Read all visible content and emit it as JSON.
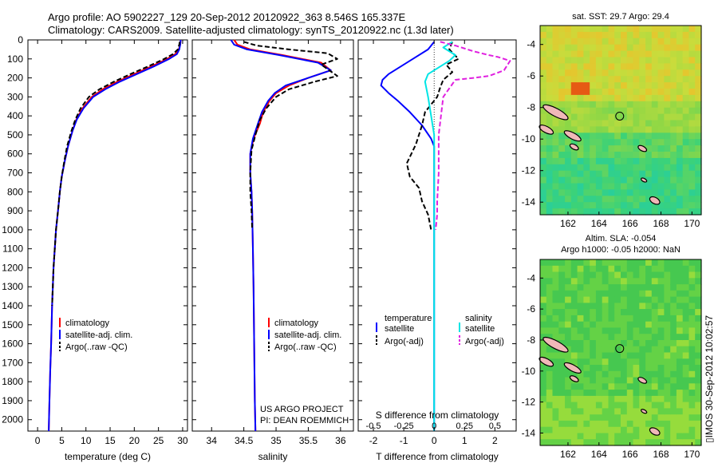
{
  "header": {
    "line1": "Argo profile: AO 5902227_129 20-Sep-2012 20120922_363 8.546S 165.337E",
    "line2": "Climatology: CARS2009. Satellite-adjusted climatology: synTS_20120922.nc (1.3d later)"
  },
  "colors": {
    "climatology": "#ff0000",
    "satellite": "#0000ff",
    "argo": "#000000",
    "satellite_salinity": "#00e5e5",
    "argo_salinity": "#e020e0"
  },
  "chart_data": [
    {
      "type": "line",
      "xlabel": "temperature (deg C)",
      "xlim": [
        -2,
        31
      ],
      "xticks": [
        0,
        5,
        10,
        15,
        20,
        25,
        30
      ],
      "ylim": [
        2060,
        0
      ],
      "yticks": [
        0,
        100,
        200,
        300,
        400,
        500,
        600,
        700,
        800,
        900,
        1000,
        1100,
        1200,
        1300,
        1400,
        1500,
        1600,
        1700,
        1800,
        1900,
        2000
      ],
      "legend": [
        "climatology",
        "satellite-adj. clim.",
        "Argo(..raw -QC)"
      ],
      "series": [
        {
          "name": "climatology",
          "color": "#ff0000",
          "dash": "",
          "x": [
            29.6,
            29.5,
            29.2,
            28.5,
            26.8,
            23.5,
            20,
            16.5,
            13.5,
            11.2,
            9.3,
            8,
            7.2,
            6.3,
            5.6,
            5,
            4.6,
            4.3,
            3.8,
            3.3,
            3,
            2.8,
            2.6,
            2.5,
            2.4,
            2.3
          ],
          "y": [
            0,
            25,
            50,
            75,
            100,
            140,
            180,
            220,
            260,
            300,
            360,
            420,
            480,
            560,
            640,
            720,
            800,
            880,
            1000,
            1200,
            1400,
            1600,
            1750,
            1850,
            1950,
            2060
          ]
        },
        {
          "name": "satellite-adj. clim.",
          "color": "#0000ff",
          "dash": "",
          "x": [
            29.6,
            29.5,
            29.3,
            28.8,
            27.2,
            24,
            20.5,
            17,
            14,
            11.5,
            9.5,
            8.1,
            7.2,
            6.3,
            5.6,
            5,
            4.6,
            4.3,
            3.8,
            3.3,
            3,
            2.8,
            2.6,
            2.5,
            2.4,
            2.3
          ],
          "y": [
            0,
            25,
            50,
            75,
            100,
            140,
            180,
            220,
            260,
            300,
            360,
            420,
            480,
            560,
            640,
            720,
            800,
            880,
            1000,
            1200,
            1400,
            1600,
            1750,
            1850,
            1950,
            2060
          ]
        },
        {
          "name": "Argo(..raw -QC)",
          "color": "#000000",
          "dash": "6,3",
          "x": [
            29.4,
            29.3,
            29,
            28,
            26.2,
            22.8,
            19.2,
            15.8,
            12.8,
            10.6,
            8.9,
            7.8,
            7,
            6.1,
            5.5,
            5,
            4.6,
            4.3,
            3.8,
            3.3,
            3
          ],
          "y": [
            10,
            25,
            50,
            75,
            100,
            140,
            180,
            220,
            260,
            300,
            360,
            420,
            480,
            560,
            640,
            720,
            800,
            880,
            1000,
            1200,
            1400
          ]
        }
      ]
    },
    {
      "type": "line",
      "xlabel": "salinity",
      "xlim": [
        33.7,
        36.2
      ],
      "xticks": [
        34,
        34.5,
        35,
        35.5,
        36
      ],
      "ylim": [
        2060,
        0
      ],
      "legend": [
        "climatology",
        "satellite-adj. clim.",
        "Argo(..raw -QC)"
      ],
      "annotation": [
        "US ARGO PROJECT",
        "PI: DEAN ROEMMICH"
      ],
      "series": [
        {
          "name": "climatology",
          "color": "#ff0000",
          "dash": "",
          "x": [
            34.35,
            34.4,
            34.6,
            35.1,
            35.7,
            35.85,
            35.5,
            35.2,
            35,
            34.9,
            34.8,
            34.75,
            34.65,
            34.6,
            34.6,
            34.62,
            34.63,
            34.64,
            34.65,
            34.66,
            34.67,
            34.68
          ],
          "y": [
            0,
            25,
            50,
            80,
            120,
            160,
            200,
            240,
            280,
            320,
            380,
            440,
            520,
            600,
            700,
            800,
            900,
            1100,
            1300,
            1600,
            1900,
            2060
          ]
        },
        {
          "name": "satellite-adj. clim.",
          "color": "#0000ff",
          "dash": "",
          "x": [
            34.3,
            34.35,
            34.55,
            35.05,
            35.65,
            35.85,
            35.5,
            35.15,
            34.98,
            34.88,
            34.78,
            34.72,
            34.64,
            34.6,
            34.6,
            34.62,
            34.63,
            34.64,
            34.65,
            34.66,
            34.67,
            34.68
          ],
          "y": [
            0,
            25,
            50,
            80,
            120,
            160,
            200,
            240,
            280,
            320,
            380,
            440,
            520,
            600,
            700,
            800,
            900,
            1100,
            1300,
            1600,
            1900,
            2060
          ]
        },
        {
          "name": "Argo(..raw -QC)",
          "color": "#000000",
          "dash": "6,3",
          "x": [
            34.5,
            34.7,
            35.2,
            35.8,
            35.95,
            35.7,
            35.95,
            35.6,
            35.2,
            35,
            34.85,
            34.75,
            34.68,
            34.62,
            34.6,
            34.6,
            34.62,
            34.63
          ],
          "y": [
            10,
            30,
            50,
            70,
            100,
            130,
            190,
            220,
            260,
            300,
            360,
            420,
            500,
            580,
            700,
            800,
            900,
            1000
          ]
        }
      ]
    },
    {
      "type": "line",
      "xlabel": "T difference from climatology",
      "xlabel_top": "S difference from climatology",
      "xlim": [
        -2.5,
        2.7
      ],
      "xticks": [
        -2,
        -1,
        0,
        1,
        2
      ],
      "xticks_top_labels": [
        "-0.5",
        "-0.25",
        "0",
        "0.25",
        "0.5"
      ],
      "ylim": [
        2060,
        0
      ],
      "legend": {
        "temperature": [
          "satellite",
          "Argo(-adj)"
        ],
        "salinity": [
          "satellite",
          "Argo(-adj)"
        ]
      },
      "legend_titles": [
        "temperature",
        "salinity"
      ],
      "series": [
        {
          "name": "temperature satellite",
          "color": "#0000ff",
          "dash": "",
          "x": [
            0,
            -0.2,
            -0.7,
            -1.2,
            -1.5,
            -1.7,
            -1.75,
            -1.5,
            -1.2,
            -0.8,
            -0.4,
            -0.1,
            0,
            0,
            0,
            0
          ],
          "y": [
            10,
            50,
            100,
            150,
            180,
            210,
            240,
            280,
            320,
            380,
            450,
            520,
            560,
            700,
            1200,
            2060
          ]
        },
        {
          "name": "temperature Argo(-adj)",
          "color": "#000000",
          "dash": "6,3",
          "x": [
            0.6,
            0.5,
            0.8,
            0.4,
            0.6,
            0.3,
            0.2,
            0.1,
            -0.3,
            -0.4,
            -0.6,
            -0.9,
            -0.8,
            -0.5,
            -0.4,
            -0.2,
            -0.1
          ],
          "y": [
            10,
            50,
            100,
            130,
            170,
            210,
            250,
            300,
            380,
            450,
            550,
            650,
            720,
            780,
            850,
            920,
            1000
          ]
        },
        {
          "name": "salinity satellite",
          "color": "#00e5e5",
          "dash": "",
          "x": [
            0.6,
            0.3,
            0.7,
            0.5,
            0.1,
            -0.2,
            -0.3,
            -0.2,
            -0.1,
            0,
            0,
            0,
            0,
            0
          ],
          "y": [
            10,
            40,
            80,
            110,
            150,
            180,
            220,
            300,
            400,
            500,
            600,
            800,
            1400,
            2060
          ]
        },
        {
          "name": "salinity Argo(-adj)",
          "color": "#e020e0",
          "dash": "6,3",
          "x": [
            0.2,
            0.7,
            1.3,
            1.8,
            2.1,
            2.5,
            2.3,
            1.8,
            1.3,
            0.7,
            0.3,
            0.15,
            0.15,
            0.1,
            0.1,
            0.05
          ],
          "y": [
            10,
            30,
            60,
            80,
            90,
            110,
            160,
            190,
            200,
            210,
            300,
            500,
            700,
            850,
            920,
            1000
          ]
        }
      ]
    }
  ],
  "maps": [
    {
      "title": "sat. SST: 29.7 Argo: 29.4",
      "xticks": [
        "162",
        "164",
        "166",
        "168",
        "170"
      ],
      "yticks": [
        "-4",
        "-6",
        "-8",
        "-10",
        "-12",
        "-14"
      ],
      "lon_range": [
        160.2,
        170.6
      ],
      "lat_range": [
        -14.8,
        -2.8
      ],
      "marker": {
        "lon": 165.337,
        "lat": -8.546
      }
    },
    {
      "title_line1": "Altim. SLA: -0.054",
      "title_line2": "Argo h1000: -0.05 h2000: NaN",
      "xticks": [
        "162",
        "164",
        "166",
        "168",
        "170"
      ],
      "yticks": [
        "-4",
        "-6",
        "-8",
        "-10",
        "-12",
        "-14"
      ],
      "lon_range": [
        160.2,
        170.6
      ],
      "lat_range": [
        -14.8,
        -2.8
      ],
      "marker": {
        "lon": 165.337,
        "lat": -8.546
      }
    }
  ],
  "footer": {
    "stamp": "▯IMOS 30-Sep-2012 10:02:57"
  }
}
